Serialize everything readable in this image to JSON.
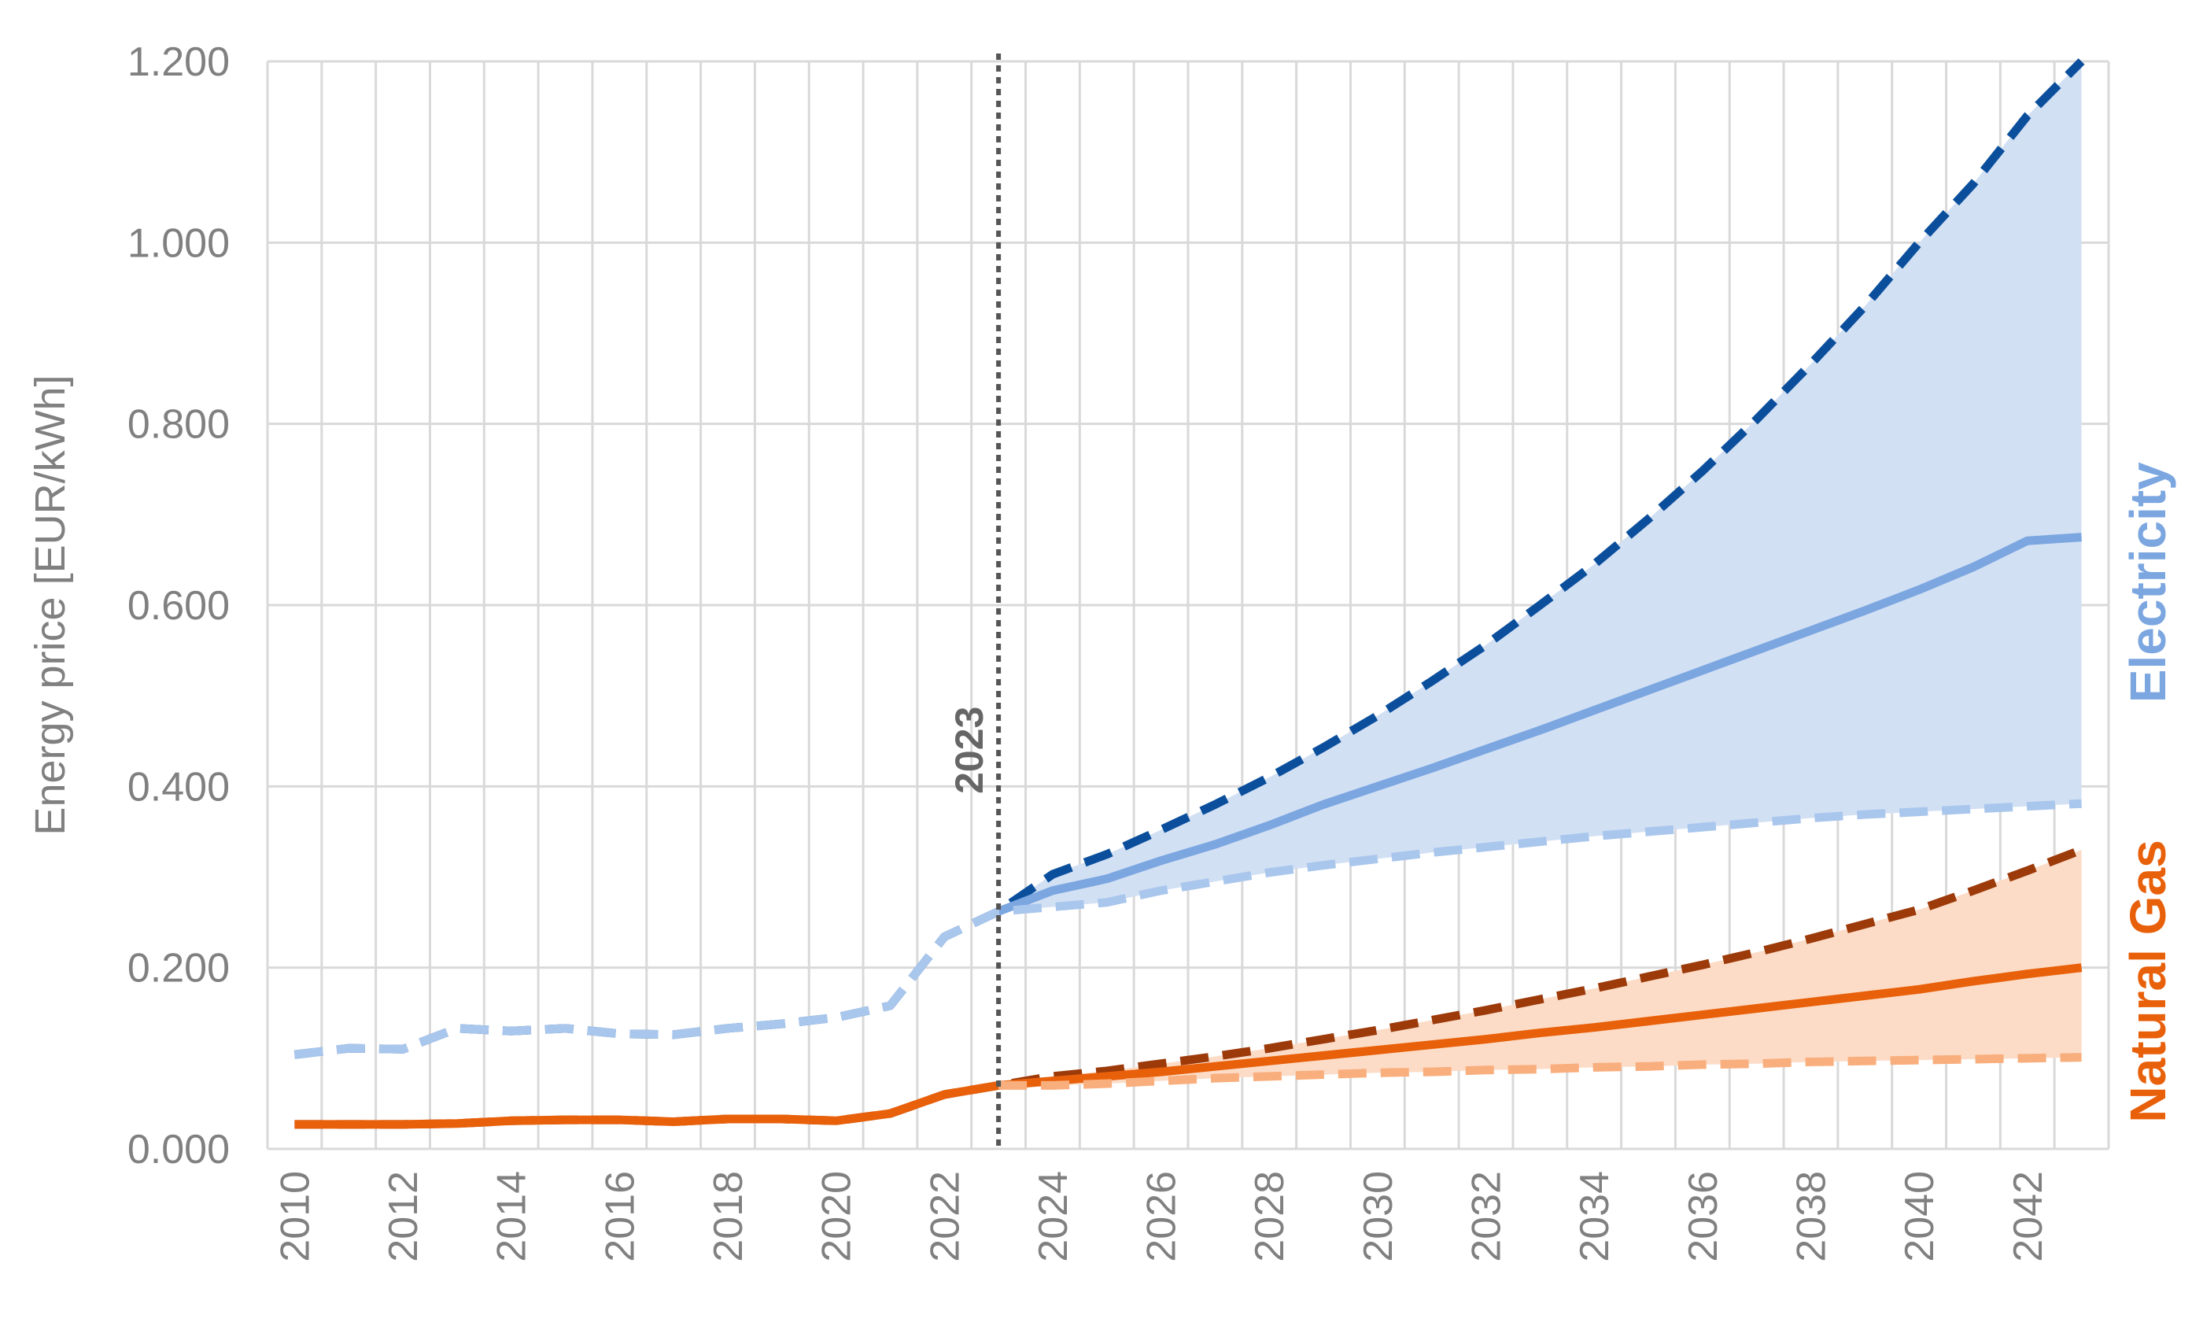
{
  "chart_data": {
    "type": "line",
    "title": "",
    "ylabel": "Energy price [EUR/kWh]",
    "xlabel": "",
    "xlim": [
      2009.5,
      2043.5
    ],
    "ylim": [
      0,
      1.2
    ],
    "grid": true,
    "y_ticks": [
      {
        "value": 0.0,
        "label": "0.000"
      },
      {
        "value": 0.2,
        "label": "0.200"
      },
      {
        "value": 0.4,
        "label": "0.400"
      },
      {
        "value": 0.6,
        "label": "0.600"
      },
      {
        "value": 0.8,
        "label": "0.800"
      },
      {
        "value": 1.0,
        "label": "1.000"
      },
      {
        "value": 1.2,
        "label": "1.200"
      }
    ],
    "x_ticks": [
      {
        "value": 2010,
        "label": "2010"
      },
      {
        "value": 2012,
        "label": "2012"
      },
      {
        "value": 2014,
        "label": "2014"
      },
      {
        "value": 2016,
        "label": "2016"
      },
      {
        "value": 2018,
        "label": "2018"
      },
      {
        "value": 2020,
        "label": "2020"
      },
      {
        "value": 2022,
        "label": "2022"
      },
      {
        "value": 2024,
        "label": "2024"
      },
      {
        "value": 2026,
        "label": "2026"
      },
      {
        "value": 2028,
        "label": "2028"
      },
      {
        "value": 2030,
        "label": "2030"
      },
      {
        "value": 2032,
        "label": "2032"
      },
      {
        "value": 2034,
        "label": "2034"
      },
      {
        "value": 2036,
        "label": "2036"
      },
      {
        "value": 2038,
        "label": "2038"
      },
      {
        "value": 2040,
        "label": "2040"
      },
      {
        "value": 2042,
        "label": "2042"
      }
    ],
    "marker": {
      "x": 2023,
      "label": "2023",
      "color": "#555555"
    },
    "bands": [
      {
        "name": "electricity-band",
        "color": "#d2e0f4",
        "x": [
          2023,
          2024,
          2025,
          2026,
          2027,
          2028,
          2029,
          2030,
          2031,
          2032,
          2033,
          2034,
          2035,
          2036,
          2037,
          2038,
          2039,
          2040,
          2041,
          2042,
          2043
        ],
        "lower": [
          0.262,
          0.267,
          0.272,
          0.285,
          0.295,
          0.305,
          0.313,
          0.32,
          0.327,
          0.333,
          0.339,
          0.345,
          0.35,
          0.355,
          0.36,
          0.365,
          0.369,
          0.372,
          0.375,
          0.378,
          0.381
        ],
        "upper": [
          0.262,
          0.303,
          0.325,
          0.352,
          0.38,
          0.41,
          0.443,
          0.478,
          0.516,
          0.556,
          0.6,
          0.645,
          0.695,
          0.748,
          0.805,
          0.866,
          0.93,
          1.0,
          1.065,
          1.14,
          1.2
        ]
      },
      {
        "name": "natural-gas-band",
        "color": "#fcdcc7",
        "x": [
          2023,
          2024,
          2025,
          2026,
          2027,
          2028,
          2029,
          2030,
          2031,
          2032,
          2033,
          2034,
          2035,
          2036,
          2037,
          2038,
          2039,
          2040,
          2041,
          2042,
          2043
        ],
        "lower": [
          0.07,
          0.07,
          0.072,
          0.075,
          0.078,
          0.08,
          0.082,
          0.084,
          0.085,
          0.087,
          0.088,
          0.09,
          0.091,
          0.093,
          0.094,
          0.096,
          0.097,
          0.098,
          0.099,
          0.1,
          0.101
        ],
        "upper": [
          0.07,
          0.08,
          0.086,
          0.094,
          0.102,
          0.111,
          0.121,
          0.131,
          0.142,
          0.153,
          0.165,
          0.177,
          0.19,
          0.203,
          0.217,
          0.232,
          0.248,
          0.264,
          0.285,
          0.307,
          0.33
        ]
      }
    ],
    "series": [
      {
        "name": "Electricity high scenario",
        "color": "#0b4f9c",
        "dash": true,
        "x": [
          2010,
          2011,
          2012,
          2013,
          2014,
          2015,
          2016,
          2017,
          2018,
          2019,
          2020,
          2021,
          2022,
          2023,
          2024,
          2025,
          2026,
          2027,
          2028,
          2029,
          2030,
          2031,
          2032,
          2033,
          2034,
          2035,
          2036,
          2037,
          2038,
          2039,
          2040,
          2041,
          2042,
          2043
        ],
        "values": [
          0.104,
          0.111,
          0.11,
          0.133,
          0.13,
          0.133,
          0.127,
          0.126,
          0.133,
          0.138,
          0.145,
          0.158,
          0.234,
          0.262,
          0.303,
          0.325,
          0.352,
          0.38,
          0.41,
          0.443,
          0.478,
          0.516,
          0.556,
          0.6,
          0.645,
          0.695,
          0.748,
          0.805,
          0.866,
          0.93,
          1.0,
          1.065,
          1.14,
          1.2
        ]
      },
      {
        "name": "Electricity reference",
        "color": "#7ba6e0",
        "dash": false,
        "x": [
          2023,
          2024,
          2025,
          2026,
          2027,
          2028,
          2029,
          2030,
          2031,
          2032,
          2033,
          2034,
          2035,
          2036,
          2037,
          2038,
          2039,
          2040,
          2041,
          2042,
          2043
        ],
        "values": [
          0.262,
          0.285,
          0.298,
          0.318,
          0.336,
          0.357,
          0.38,
          0.4,
          0.42,
          0.441,
          0.462,
          0.484,
          0.506,
          0.528,
          0.55,
          0.572,
          0.594,
          0.617,
          0.642,
          0.671,
          0.675
        ]
      },
      {
        "name": "Electricity low scenario",
        "color": "#a9c6ec",
        "dash": true,
        "x": [
          2010,
          2011,
          2012,
          2013,
          2014,
          2015,
          2016,
          2017,
          2018,
          2019,
          2020,
          2021,
          2022,
          2023,
          2024,
          2025,
          2026,
          2027,
          2028,
          2029,
          2030,
          2031,
          2032,
          2033,
          2034,
          2035,
          2036,
          2037,
          2038,
          2039,
          2040,
          2041,
          2042,
          2043
        ],
        "values": [
          0.104,
          0.111,
          0.11,
          0.133,
          0.13,
          0.133,
          0.127,
          0.126,
          0.133,
          0.138,
          0.145,
          0.158,
          0.234,
          0.262,
          0.267,
          0.272,
          0.285,
          0.295,
          0.305,
          0.313,
          0.32,
          0.327,
          0.333,
          0.339,
          0.345,
          0.35,
          0.355,
          0.36,
          0.365,
          0.369,
          0.372,
          0.375,
          0.378,
          0.381
        ]
      },
      {
        "name": "Natural gas high scenario",
        "color": "#9c3a0a",
        "dash": true,
        "x": [
          2010,
          2011,
          2012,
          2013,
          2014,
          2015,
          2016,
          2017,
          2018,
          2019,
          2020,
          2021,
          2022,
          2023,
          2024,
          2025,
          2026,
          2027,
          2028,
          2029,
          2030,
          2031,
          2032,
          2033,
          2034,
          2035,
          2036,
          2037,
          2038,
          2039,
          2040,
          2041,
          2042,
          2043
        ],
        "values": [
          0.027,
          0.027,
          0.027,
          0.028,
          0.031,
          0.032,
          0.032,
          0.03,
          0.033,
          0.033,
          0.031,
          0.039,
          0.06,
          0.07,
          0.08,
          0.086,
          0.094,
          0.102,
          0.111,
          0.121,
          0.131,
          0.142,
          0.153,
          0.165,
          0.177,
          0.19,
          0.203,
          0.217,
          0.232,
          0.248,
          0.264,
          0.285,
          0.307,
          0.33
        ]
      },
      {
        "name": "Natural gas reference",
        "color": "#e8600a",
        "dash": false,
        "x": [
          2010,
          2011,
          2012,
          2013,
          2014,
          2015,
          2016,
          2017,
          2018,
          2019,
          2020,
          2021,
          2022,
          2023,
          2024,
          2025,
          2026,
          2027,
          2028,
          2029,
          2030,
          2031,
          2032,
          2033,
          2034,
          2035,
          2036,
          2037,
          2038,
          2039,
          2040,
          2041,
          2042,
          2043
        ],
        "values": [
          0.027,
          0.027,
          0.027,
          0.028,
          0.031,
          0.032,
          0.032,
          0.03,
          0.033,
          0.033,
          0.031,
          0.039,
          0.06,
          0.07,
          0.075,
          0.08,
          0.085,
          0.091,
          0.097,
          0.103,
          0.109,
          0.115,
          0.121,
          0.128,
          0.134,
          0.141,
          0.148,
          0.155,
          0.162,
          0.169,
          0.176,
          0.185,
          0.193,
          0.2
        ]
      },
      {
        "name": "Natural gas low scenario",
        "color": "#f9ae7d",
        "dash": true,
        "x": [
          2023,
          2024,
          2025,
          2026,
          2027,
          2028,
          2029,
          2030,
          2031,
          2032,
          2033,
          2034,
          2035,
          2036,
          2037,
          2038,
          2039,
          2040,
          2041,
          2042,
          2043
        ],
        "values": [
          0.07,
          0.07,
          0.072,
          0.075,
          0.078,
          0.08,
          0.082,
          0.084,
          0.085,
          0.087,
          0.088,
          0.09,
          0.091,
          0.093,
          0.094,
          0.096,
          0.097,
          0.098,
          0.099,
          0.1,
          0.101
        ]
      }
    ],
    "annotations": [
      {
        "text": "Electricity",
        "color": "#7ba6e0"
      },
      {
        "text": "Natural Gas",
        "color": "#e8600a"
      }
    ]
  }
}
